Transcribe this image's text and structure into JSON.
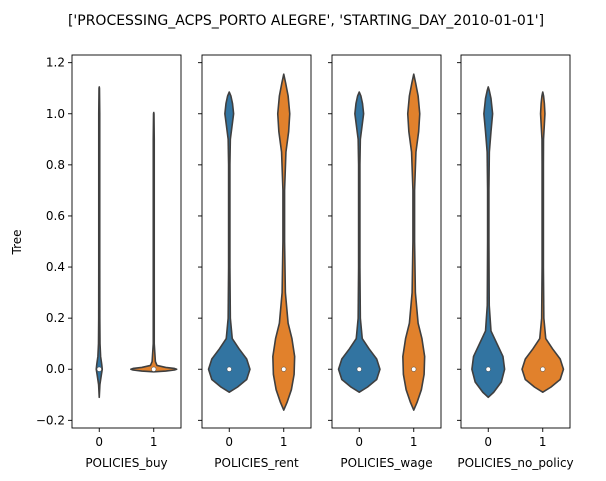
{
  "figure": {
    "title": "['PROCESSING_ACPS_PORTO ALEGRE', 'STARTING_DAY_2010-01-01']"
  },
  "chart_data": {
    "type": "violin",
    "ylabel": "Tree",
    "ylim": [
      -0.23,
      1.23
    ],
    "yticks": [
      -0.2,
      0.0,
      0.2,
      0.4,
      0.6,
      0.8,
      1.0,
      1.2
    ],
    "ytick_labels": [
      "−0.2",
      "0.0",
      "0.2",
      "0.4",
      "0.6",
      "0.8",
      "1.0",
      "1.2"
    ],
    "sharey": true,
    "colors": {
      "0": "#3274a1",
      "1": "#e1812c"
    },
    "panels": [
      {
        "xlabel": "POLICIES_buy",
        "categories": [
          "0",
          "1"
        ],
        "violins": [
          {
            "category": "0",
            "median": 0.0,
            "profile": [
              [
                -0.11,
                0.0
              ],
              [
                -0.06,
                0.012
              ],
              [
                -0.02,
                0.04
              ],
              [
                0.0,
                0.055
              ],
              [
                0.02,
                0.045
              ],
              [
                0.05,
                0.025
              ],
              [
                0.1,
                0.014
              ],
              [
                0.2,
                0.01
              ],
              [
                0.4,
                0.009
              ],
              [
                0.6,
                0.009
              ],
              [
                0.8,
                0.009
              ],
              [
                1.0,
                0.009
              ],
              [
                1.1,
                0.004
              ],
              [
                1.105,
                0.0
              ]
            ]
          },
          {
            "category": "1",
            "median": 0.0,
            "profile": [
              [
                -0.01,
                0.0
              ],
              [
                -0.007,
                0.22
              ],
              [
                -0.003,
                0.38
              ],
              [
                0.0,
                0.42
              ],
              [
                0.003,
                0.38
              ],
              [
                0.007,
                0.22
              ],
              [
                0.015,
                0.06
              ],
              [
                0.03,
                0.03
              ],
              [
                0.1,
                0.009
              ],
              [
                0.3,
                0.009
              ],
              [
                0.6,
                0.009
              ],
              [
                0.9,
                0.009
              ],
              [
                1.0,
                0.004
              ],
              [
                1.005,
                0.0
              ]
            ]
          }
        ]
      },
      {
        "xlabel": "POLICIES_rent",
        "categories": [
          "0",
          "1"
        ],
        "violins": [
          {
            "category": "0",
            "median": 0.0,
            "profile": [
              [
                -0.09,
                0.0
              ],
              [
                -0.07,
                0.15
              ],
              [
                -0.04,
                0.32
              ],
              [
                0.0,
                0.38
              ],
              [
                0.04,
                0.32
              ],
              [
                0.08,
                0.18
              ],
              [
                0.12,
                0.055
              ],
              [
                0.2,
                0.02
              ],
              [
                0.4,
                0.012
              ],
              [
                0.6,
                0.012
              ],
              [
                0.8,
                0.012
              ],
              [
                0.9,
                0.02
              ],
              [
                0.95,
                0.05
              ],
              [
                1.0,
                0.08
              ],
              [
                1.04,
                0.06
              ],
              [
                1.07,
                0.03
              ],
              [
                1.085,
                0.0
              ]
            ]
          },
          {
            "category": "1",
            "median": 0.0,
            "profile": [
              [
                -0.16,
                0.0
              ],
              [
                -0.13,
                0.06
              ],
              [
                -0.08,
                0.14
              ],
              [
                -0.02,
                0.19
              ],
              [
                0.05,
                0.2
              ],
              [
                0.12,
                0.15
              ],
              [
                0.18,
                0.08
              ],
              [
                0.3,
                0.03
              ],
              [
                0.5,
                0.015
              ],
              [
                0.7,
                0.015
              ],
              [
                0.85,
                0.04
              ],
              [
                0.93,
                0.09
              ],
              [
                1.0,
                0.11
              ],
              [
                1.07,
                0.08
              ],
              [
                1.12,
                0.035
              ],
              [
                1.155,
                0.0
              ]
            ]
          }
        ]
      },
      {
        "xlabel": "POLICIES_wage",
        "categories": [
          "0",
          "1"
        ],
        "violins": [
          {
            "category": "0",
            "median": 0.0,
            "profile": [
              [
                -0.09,
                0.0
              ],
              [
                -0.07,
                0.15
              ],
              [
                -0.04,
                0.32
              ],
              [
                0.0,
                0.38
              ],
              [
                0.04,
                0.32
              ],
              [
                0.08,
                0.18
              ],
              [
                0.12,
                0.055
              ],
              [
                0.2,
                0.02
              ],
              [
                0.4,
                0.012
              ],
              [
                0.6,
                0.012
              ],
              [
                0.8,
                0.012
              ],
              [
                0.9,
                0.02
              ],
              [
                0.95,
                0.05
              ],
              [
                1.0,
                0.08
              ],
              [
                1.04,
                0.06
              ],
              [
                1.07,
                0.03
              ],
              [
                1.085,
                0.0
              ]
            ]
          },
          {
            "category": "1",
            "median": 0.0,
            "profile": [
              [
                -0.16,
                0.0
              ],
              [
                -0.13,
                0.06
              ],
              [
                -0.08,
                0.14
              ],
              [
                -0.02,
                0.19
              ],
              [
                0.05,
                0.2
              ],
              [
                0.12,
                0.15
              ],
              [
                0.18,
                0.08
              ],
              [
                0.3,
                0.03
              ],
              [
                0.5,
                0.015
              ],
              [
                0.7,
                0.015
              ],
              [
                0.85,
                0.04
              ],
              [
                0.93,
                0.09
              ],
              [
                1.0,
                0.11
              ],
              [
                1.07,
                0.08
              ],
              [
                1.12,
                0.035
              ],
              [
                1.155,
                0.0
              ]
            ]
          }
        ]
      },
      {
        "xlabel": "POLICIES_no_policy",
        "categories": [
          "0",
          "1"
        ],
        "violins": [
          {
            "category": "0",
            "median": 0.0,
            "profile": [
              [
                -0.11,
                0.0
              ],
              [
                -0.09,
                0.1
              ],
              [
                -0.05,
                0.24
              ],
              [
                0.0,
                0.3
              ],
              [
                0.05,
                0.27
              ],
              [
                0.1,
                0.16
              ],
              [
                0.15,
                0.05
              ],
              [
                0.25,
                0.018
              ],
              [
                0.5,
                0.012
              ],
              [
                0.7,
                0.012
              ],
              [
                0.85,
                0.02
              ],
              [
                0.93,
                0.05
              ],
              [
                1.0,
                0.08
              ],
              [
                1.06,
                0.05
              ],
              [
                1.09,
                0.02
              ],
              [
                1.105,
                0.0
              ]
            ]
          },
          {
            "category": "1",
            "median": 0.0,
            "profile": [
              [
                -0.09,
                0.0
              ],
              [
                -0.07,
                0.15
              ],
              [
                -0.04,
                0.32
              ],
              [
                0.0,
                0.38
              ],
              [
                0.04,
                0.32
              ],
              [
                0.08,
                0.18
              ],
              [
                0.12,
                0.055
              ],
              [
                0.2,
                0.02
              ],
              [
                0.4,
                0.012
              ],
              [
                0.6,
                0.012
              ],
              [
                0.8,
                0.012
              ],
              [
                0.9,
                0.014
              ],
              [
                0.96,
                0.03
              ],
              [
                1.0,
                0.04
              ],
              [
                1.04,
                0.03
              ],
              [
                1.07,
                0.015
              ],
              [
                1.085,
                0.0
              ]
            ]
          }
        ]
      }
    ]
  }
}
